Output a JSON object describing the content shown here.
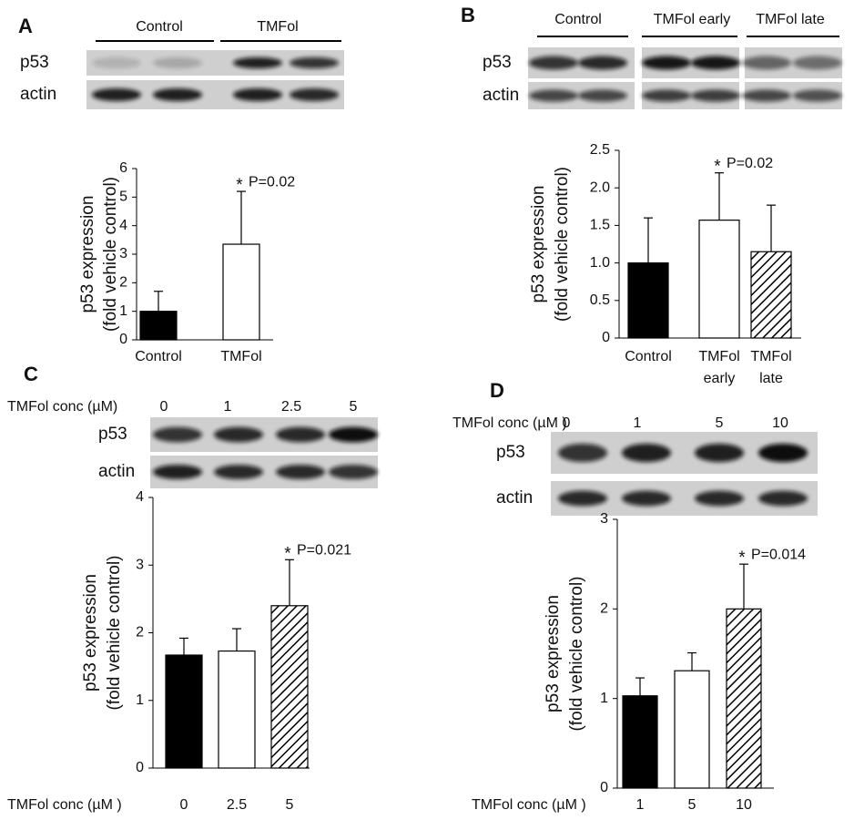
{
  "chart_data": [
    {
      "type": "bar",
      "panel": "A",
      "blot_groups": [
        "Control",
        "TMFol"
      ],
      "blot_rows": [
        "p53",
        "actin"
      ],
      "ylabel": [
        "p53 expression",
        "(fold vehicle control)"
      ],
      "categories": [
        "Control",
        "TMFol"
      ],
      "values": [
        1.0,
        3.35
      ],
      "errors": [
        0.7,
        1.85
      ],
      "bar_fills": [
        "black",
        "white"
      ],
      "ylim": [
        0,
        6
      ],
      "yticks": [
        0,
        1,
        2,
        3,
        4,
        5,
        6
      ],
      "significance": [
        null,
        {
          "star": "*",
          "p": "P=0.02"
        }
      ]
    },
    {
      "type": "bar",
      "panel": "B",
      "blot_groups": [
        "Control",
        "TMFol early",
        "TMFol late"
      ],
      "blot_rows": [
        "p53",
        "actin"
      ],
      "ylabel": [
        "p53 expression",
        "(fold vehicle control)"
      ],
      "categories": [
        "Control",
        [
          "TMFol",
          "early"
        ],
        [
          "TMFol",
          "late"
        ]
      ],
      "values": [
        1.0,
        1.57,
        1.15
      ],
      "errors": [
        0.6,
        0.63,
        0.62
      ],
      "bar_fills": [
        "black",
        "white",
        "hatch"
      ],
      "ylim": [
        0,
        2.5
      ],
      "yticks": [
        0,
        0.5,
        {
          "value": 1,
          "label": "1.0"
        },
        1.5,
        {
          "value": 2,
          "label": "2.0"
        },
        2.5
      ],
      "significance": [
        null,
        {
          "star": "*",
          "p": "P=0.02"
        },
        null
      ]
    },
    {
      "type": "bar",
      "panel": "C",
      "blot_lane_title": "TMFol conc (µM)",
      "blot_lanes": [
        "0",
        "1",
        "2.5",
        "5"
      ],
      "blot_rows": [
        "p53",
        "actin"
      ],
      "ylabel": [
        "p53 expression",
        "(fold vehicle control)"
      ],
      "xlabel": "TMFol conc (µM )",
      "categories": [
        "0",
        "2.5",
        "5"
      ],
      "values": [
        1.67,
        1.73,
        2.4
      ],
      "errors": [
        0.25,
        0.33,
        0.68
      ],
      "bar_fills": [
        "black",
        "white",
        "hatch"
      ],
      "ylim": [
        0,
        4
      ],
      "yticks": [
        0,
        1,
        2,
        3,
        4
      ],
      "significance": [
        null,
        null,
        {
          "star": "*",
          "p": "P=0.021"
        }
      ]
    },
    {
      "type": "bar",
      "panel": "D",
      "blot_lane_title": "TMFol conc (µM )",
      "blot_lanes": [
        "0",
        "1",
        "5",
        "10"
      ],
      "blot_rows": [
        "p53",
        "actin"
      ],
      "ylabel": [
        "p53 expression",
        "(fold vehicle control)"
      ],
      "xlabel": "TMFol conc (µM )",
      "categories": [
        "1",
        "5",
        "10"
      ],
      "values": [
        1.03,
        1.31,
        2.0
      ],
      "errors": [
        0.2,
        0.2,
        0.5
      ],
      "bar_fills": [
        "black",
        "white",
        "hatch"
      ],
      "ylim": [
        0,
        3
      ],
      "yticks": [
        0,
        1,
        2,
        3
      ],
      "significance": [
        null,
        null,
        {
          "star": "*",
          "p": "P=0.014"
        }
      ]
    }
  ]
}
